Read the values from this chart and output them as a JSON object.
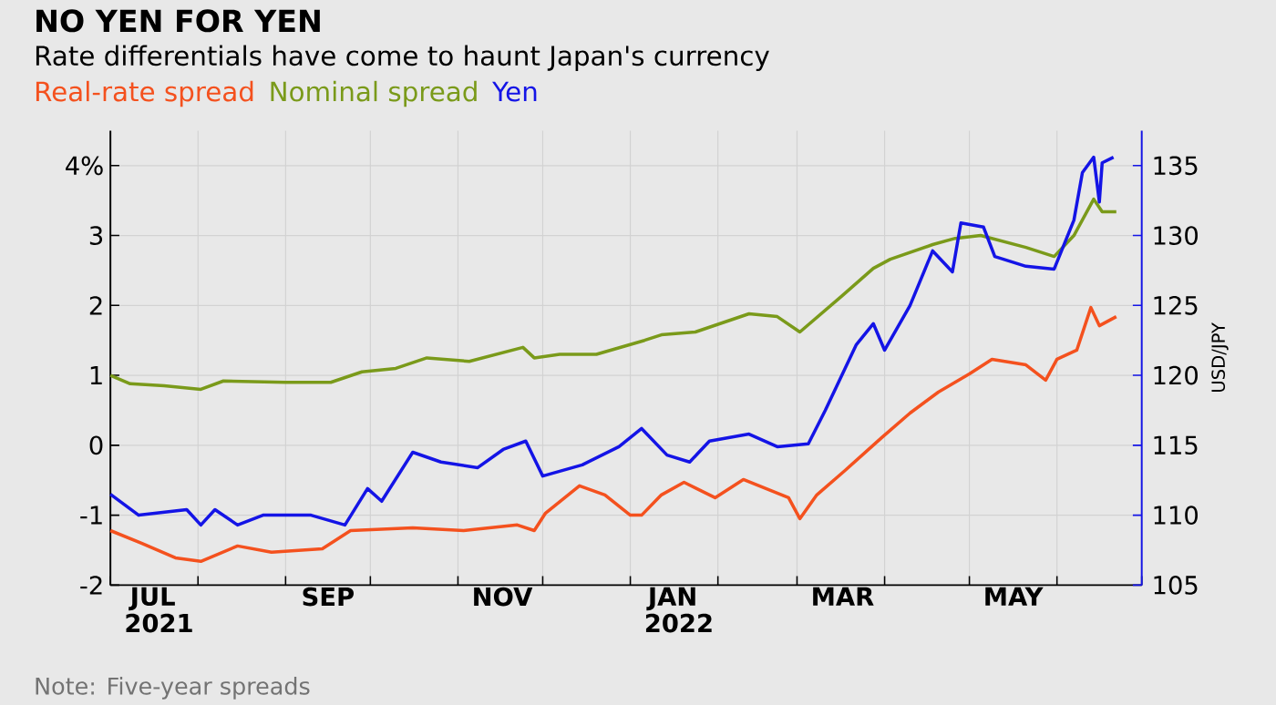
{
  "chart_data": {
    "type": "line",
    "title": "NO YEN FOR YEN",
    "subtitle": "Rate differentials have come to haunt Japan's currency",
    "y2label": "USD/JPY",
    "annotations": [
      "Note: Five-year spreads"
    ],
    "xlim": [
      "2021-07-01",
      "2022-07-01"
    ],
    "xticks": [
      {
        "value": "2021-07-01",
        "label": null
      },
      {
        "value": "2021-08-01",
        "label": null
      },
      {
        "value": "2021-09-01",
        "label": null
      },
      {
        "value": "2021-10-01",
        "label": null
      },
      {
        "value": "2021-11-01",
        "label": null
      },
      {
        "value": "2021-12-01",
        "label": null
      },
      {
        "value": "2022-01-01",
        "label": null
      },
      {
        "value": "2022-02-01",
        "label": null
      },
      {
        "value": "2022-03-01",
        "label": null
      },
      {
        "value": "2022-04-01",
        "label": null
      },
      {
        "value": "2022-05-01",
        "label": null
      },
      {
        "value": "2022-06-01",
        "label": null
      },
      {
        "value": "2022-07-01",
        "label": null
      },
      {
        "value": "2021-07-16",
        "label": "JUL 2021"
      },
      {
        "value": "2021-09-16",
        "label": "SEP"
      },
      {
        "value": "2021-11-16",
        "label": "NOV"
      },
      {
        "value": "2022-01-16",
        "label": "JAN 2022"
      },
      {
        "value": "2022-03-16",
        "label": "MAR"
      },
      {
        "value": "2022-05-16",
        "label": "MAY"
      }
    ],
    "ylim": [
      -2,
      4.5
    ],
    "yticks": [
      -2,
      -1,
      0,
      1,
      2,
      3,
      {
        "value": 4,
        "label": "4%"
      }
    ],
    "y2lim": [
      105,
      137.5
    ],
    "y2ticks": [
      105,
      110,
      115,
      120,
      125,
      130,
      135
    ],
    "grid": true,
    "legend": "top left",
    "series": [
      {
        "name": "Real-rate spread",
        "color": "#f4511e",
        "x": [
          "2021-07-01",
          "2021-07-12",
          "2021-07-24",
          "2021-08-02",
          "2021-08-15",
          "2021-08-27",
          "2021-09-14",
          "2021-09-24",
          "2021-10-16",
          "2021-11-03",
          "2021-11-22",
          "2021-11-28",
          "2021-12-02",
          "2021-12-14",
          "2021-12-23",
          "2022-01-01",
          "2022-01-05",
          "2022-01-12",
          "2022-01-20",
          "2022-01-31",
          "2022-02-10",
          "2022-02-26",
          "2022-03-02",
          "2022-03-08",
          "2022-03-18",
          "2022-03-31",
          "2022-04-10",
          "2022-04-20",
          "2022-05-01",
          "2022-05-09",
          "2022-05-21",
          "2022-05-28",
          "2022-06-01",
          "2022-06-08",
          "2022-06-13",
          "2022-06-16",
          "2022-06-22"
        ],
        "values": [
          -1.22,
          -1.4,
          -1.61,
          -1.66,
          -1.44,
          -1.53,
          -1.48,
          -1.22,
          -1.18,
          -1.22,
          -1.14,
          -1.22,
          -0.97,
          -0.58,
          -0.71,
          -1.0,
          -1.0,
          -0.71,
          -0.53,
          -0.75,
          -0.49,
          -0.75,
          -1.05,
          -0.71,
          -0.36,
          0.11,
          0.46,
          0.76,
          1.02,
          1.23,
          1.15,
          0.93,
          1.23,
          1.36,
          1.97,
          1.71,
          1.84
        ]
      },
      {
        "name": "Nominal spread",
        "color": "#7a9a1a",
        "x": [
          "2021-07-01",
          "2021-07-08",
          "2021-07-20",
          "2021-08-02",
          "2021-08-10",
          "2021-09-01",
          "2021-09-17",
          "2021-09-28",
          "2021-10-10",
          "2021-10-21",
          "2021-11-05",
          "2021-11-24",
          "2021-11-28",
          "2021-12-07",
          "2021-12-20",
          "2022-01-06",
          "2022-01-12",
          "2022-01-24",
          "2022-02-12",
          "2022-02-22",
          "2022-03-02",
          "2022-03-17",
          "2022-03-28",
          "2022-04-03",
          "2022-04-18",
          "2022-04-26",
          "2022-05-05",
          "2022-05-21",
          "2022-05-31",
          "2022-06-07",
          "2022-06-14",
          "2022-06-17",
          "2022-06-22"
        ],
        "values": [
          1.0,
          0.88,
          0.85,
          0.8,
          0.92,
          0.9,
          0.9,
          1.05,
          1.1,
          1.25,
          1.2,
          1.4,
          1.25,
          1.3,
          1.3,
          1.5,
          1.58,
          1.62,
          1.88,
          1.84,
          1.62,
          2.14,
          2.53,
          2.66,
          2.87,
          2.96,
          3.0,
          2.83,
          2.7,
          3.0,
          3.52,
          3.34,
          3.34
        ]
      },
      {
        "name": "Yen",
        "color": "#1414e6",
        "axis": "y2",
        "x": [
          "2021-07-01",
          "2021-07-11",
          "2021-07-28",
          "2021-08-02",
          "2021-08-07",
          "2021-08-15",
          "2021-08-24",
          "2021-09-10",
          "2021-09-22",
          "2021-09-30",
          "2021-10-05",
          "2021-10-16",
          "2021-10-26",
          "2021-11-08",
          "2021-11-17",
          "2021-11-25",
          "2021-12-01",
          "2021-12-15",
          "2021-12-28",
          "2022-01-05",
          "2022-01-14",
          "2022-01-22",
          "2022-01-29",
          "2022-02-12",
          "2022-02-22",
          "2022-03-05",
          "2022-03-11",
          "2022-03-22",
          "2022-03-28",
          "2022-04-01",
          "2022-04-10",
          "2022-04-18",
          "2022-04-25",
          "2022-04-28",
          "2022-05-06",
          "2022-05-10",
          "2022-05-21",
          "2022-05-31",
          "2022-06-07",
          "2022-06-10",
          "2022-06-14",
          "2022-06-16",
          "2022-06-17",
          "2022-06-21"
        ],
        "values": [
          111.5,
          110.0,
          110.4,
          109.3,
          110.4,
          109.3,
          110.0,
          110.0,
          109.3,
          111.9,
          111.0,
          114.5,
          113.8,
          113.4,
          114.7,
          115.3,
          112.8,
          113.6,
          114.9,
          116.2,
          114.3,
          113.8,
          115.3,
          115.8,
          114.9,
          115.1,
          117.5,
          122.2,
          123.7,
          121.8,
          125.0,
          128.9,
          127.4,
          130.9,
          130.6,
          128.5,
          127.8,
          127.6,
          131.1,
          134.5,
          135.6,
          132.4,
          135.2,
          135.6
        ]
      }
    ]
  }
}
